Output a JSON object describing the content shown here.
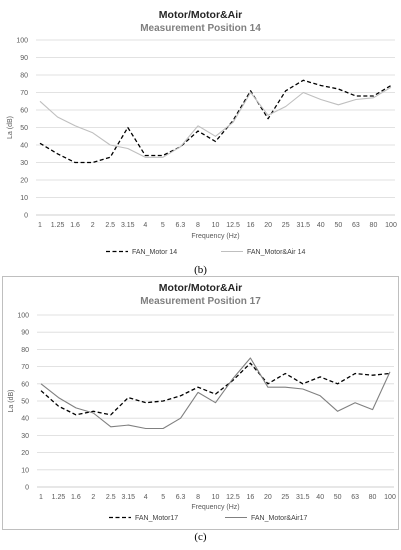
{
  "captions": [
    "(b)",
    "(c)"
  ],
  "chart_data": [
    {
      "type": "line",
      "title": "Motor/Motor&Air",
      "subtitle": "Measurement Position 14",
      "xlabel": "Frequency (Hz)",
      "ylabel": "La  (dB)",
      "categories": [
        "1",
        "1.25",
        "1.6",
        "2",
        "2.5",
        "3.15",
        "4",
        "5",
        "6.3",
        "8",
        "10",
        "12.5",
        "16",
        "20",
        "25",
        "31.5",
        "40",
        "50",
        "63",
        "80",
        "100"
      ],
      "yticks": [
        "0",
        "10",
        "20",
        "30",
        "40",
        "50",
        "60",
        "70",
        "80",
        "90",
        "100"
      ],
      "ylim": [
        0,
        100
      ],
      "grid": true,
      "legend_position": "bottom",
      "series": [
        {
          "name": "FAN_Motor 14",
          "style": "dashed",
          "color": "#000000",
          "values": [
            41,
            35,
            30,
            30,
            33,
            50,
            34,
            34,
            39,
            48,
            42,
            54,
            71,
            55,
            71,
            77,
            74,
            72,
            68,
            68,
            74
          ]
        },
        {
          "name": "FAN_Motor&Air 14",
          "style": "solid",
          "color": "#bfbfbf",
          "values": [
            65,
            56,
            51,
            47,
            40,
            38,
            33,
            33,
            39,
            51,
            45,
            53,
            70,
            57,
            62,
            70,
            66,
            63,
            66,
            67,
            73
          ]
        }
      ]
    },
    {
      "type": "line",
      "title": "Motor/Motor&Air",
      "subtitle": "Measurement Position 17",
      "xlabel": "Frequency (Hz)",
      "ylabel": "La  (dB)",
      "categories": [
        "1",
        "1.25",
        "1.6",
        "2",
        "2.5",
        "3.15",
        "4",
        "5",
        "6.3",
        "8",
        "10",
        "12.5",
        "16",
        "20",
        "25",
        "31.5",
        "40",
        "50",
        "63",
        "80",
        "100"
      ],
      "yticks": [
        "0",
        "10",
        "20",
        "30",
        "40",
        "50",
        "60",
        "70",
        "80",
        "90",
        "100"
      ],
      "ylim": [
        0,
        100
      ],
      "grid": true,
      "legend_position": "bottom",
      "series": [
        {
          "name": "FAN_Motor17",
          "style": "dashed",
          "color": "#000000",
          "values": [
            56,
            47,
            42,
            44,
            42,
            52,
            49,
            50,
            53,
            58,
            54,
            62,
            72,
            60,
            66,
            60,
            64,
            60,
            66,
            65,
            66
          ]
        },
        {
          "name": "FAN_Motor&Air17",
          "style": "solid",
          "color": "#808080",
          "values": [
            60,
            52,
            46,
            43,
            35,
            36,
            34,
            34,
            40,
            55,
            49,
            63,
            75,
            58,
            58,
            57,
            53,
            44,
            49,
            45,
            67
          ]
        }
      ]
    }
  ]
}
